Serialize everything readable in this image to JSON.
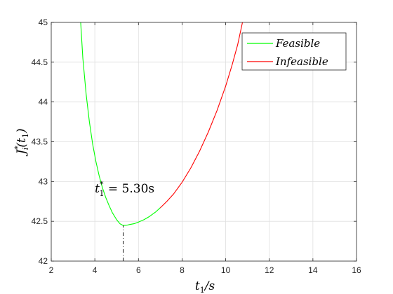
{
  "chart_data": {
    "type": "line",
    "xlabel": {
      "main": "t",
      "sub": "1",
      "tail": "/s"
    },
    "ylabel": {
      "main": "J",
      "sup": "*",
      "sub": "i",
      "arg": "(t",
      "argsub": "1",
      "close": ")"
    },
    "xlim": [
      2,
      16
    ],
    "ylim": [
      42,
      45
    ],
    "xticks": [
      2,
      4,
      6,
      8,
      10,
      12,
      14,
      16
    ],
    "yticks": [
      42,
      42.5,
      43,
      43.5,
      44,
      44.5,
      45
    ],
    "xtick_labels": [
      "2",
      "4",
      "6",
      "8",
      "10",
      "12",
      "14",
      "16"
    ],
    "ytick_labels": [
      "42",
      "42.5",
      "43",
      "43.5",
      "44",
      "44.5",
      "45"
    ],
    "grid": true,
    "legend_position": "top-right",
    "series": [
      {
        "name": "Feasible",
        "color": "#00ff00",
        "x": [
          3.35,
          3.45,
          3.6,
          3.75,
          3.9,
          4.05,
          4.2,
          4.35,
          4.5,
          4.65,
          4.8,
          5.0,
          5.15,
          5.3,
          5.45,
          5.6,
          5.8,
          6.0,
          6.25,
          6.5,
          6.8,
          7.0
        ],
        "y": [
          45.0,
          44.55,
          44.1,
          43.75,
          43.47,
          43.25,
          43.07,
          42.92,
          42.8,
          42.7,
          42.61,
          42.52,
          42.47,
          42.448,
          42.45,
          42.46,
          42.47,
          42.49,
          42.52,
          42.56,
          42.62,
          42.67
        ]
      },
      {
        "name": "Infeasible",
        "color": "#ff0000",
        "x": [
          7.0,
          7.3,
          7.6,
          8.0,
          8.4,
          8.8,
          9.2,
          9.6,
          10.0,
          10.3,
          10.55,
          10.77
        ],
        "y": [
          42.67,
          42.75,
          42.84,
          42.99,
          43.17,
          43.38,
          43.62,
          43.89,
          44.2,
          44.47,
          44.72,
          45.0
        ]
      }
    ],
    "annotation": {
      "label_main": "t",
      "label_sup": "*",
      "label_sub": "1",
      "label_tail": " = 5.30s",
      "x": 5.3,
      "y": 42.448,
      "text_x": 4.0,
      "text_y": 42.86
    },
    "minimum_marker": {
      "x": 5.3,
      "from_y": 42.0,
      "to_y": 42.448,
      "style": "dash-dot"
    }
  }
}
